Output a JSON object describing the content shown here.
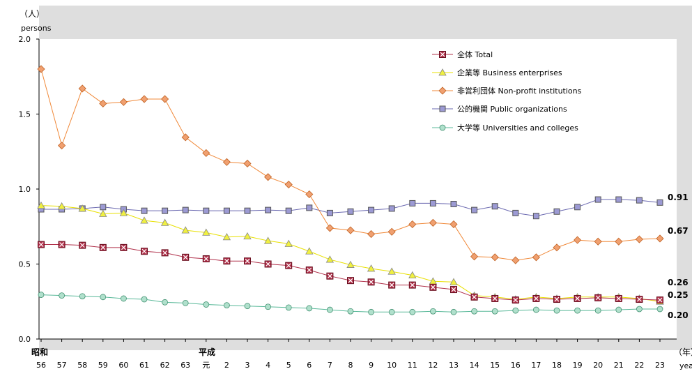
{
  "chart_data": {
    "type": "line",
    "ylabel_ja": "（人）",
    "ylabel_en": "persons",
    "xlabel_ja": "（年）",
    "xlabel_en": "year",
    "era_showa": "昭和",
    "era_heisei": "平成",
    "ylim": [
      0,
      2.0
    ],
    "yticks": [
      "0.0",
      "0.5",
      "1.0",
      "1.5",
      "2.0"
    ],
    "categories": [
      "56",
      "57",
      "58",
      "59",
      "60",
      "61",
      "62",
      "63",
      "元",
      "2",
      "3",
      "4",
      "5",
      "6",
      "7",
      "8",
      "9",
      "10",
      "11",
      "12",
      "13",
      "14",
      "15",
      "16",
      "17",
      "18",
      "19",
      "20",
      "21",
      "22",
      "23"
    ],
    "grid": false,
    "legend_position": "top-right",
    "series": [
      {
        "name": "全体 Total",
        "color": "#b0304a",
        "marker": "square-x",
        "values": [
          0.63,
          0.63,
          0.625,
          0.61,
          0.61,
          0.585,
          0.575,
          0.545,
          0.535,
          0.52,
          0.52,
          0.5,
          0.49,
          0.46,
          0.42,
          0.39,
          0.38,
          0.36,
          0.36,
          0.345,
          0.33,
          0.28,
          0.27,
          0.26,
          0.27,
          0.265,
          0.27,
          0.275,
          0.27,
          0.265,
          0.26
        ],
        "end_label": "0.26"
      },
      {
        "name": "企業等 Business enterprises",
        "color": "#e8e000",
        "marker": "triangle",
        "values": [
          0.89,
          0.885,
          0.87,
          0.835,
          0.84,
          0.79,
          0.775,
          0.725,
          0.71,
          0.68,
          0.685,
          0.655,
          0.635,
          0.585,
          0.53,
          0.495,
          0.47,
          0.45,
          0.425,
          0.385,
          0.38,
          0.29,
          0.28,
          0.265,
          0.28,
          0.27,
          0.28,
          0.28,
          0.28,
          0.27,
          0.25
        ],
        "end_label": "0.25"
      },
      {
        "name": "非営利団体 Non-profit institutions",
        "color": "#f08838",
        "marker": "diamond",
        "values": [
          1.8,
          1.29,
          1.67,
          1.57,
          1.58,
          1.6,
          1.6,
          1.345,
          1.24,
          1.18,
          1.17,
          1.08,
          1.03,
          0.965,
          0.74,
          0.725,
          0.7,
          0.715,
          0.765,
          0.775,
          0.765,
          0.55,
          0.545,
          0.525,
          0.545,
          0.61,
          0.66,
          0.65,
          0.65,
          0.665,
          0.67
        ],
        "end_label": "0.67"
      },
      {
        "name": "公的機関 Public organizations",
        "color": "#6a68b0",
        "marker": "square",
        "values": [
          0.865,
          0.865,
          0.87,
          0.88,
          0.865,
          0.855,
          0.855,
          0.86,
          0.855,
          0.855,
          0.855,
          0.86,
          0.855,
          0.875,
          0.84,
          0.85,
          0.86,
          0.87,
          0.905,
          0.905,
          0.9,
          0.86,
          0.885,
          0.84,
          0.82,
          0.85,
          0.88,
          0.93,
          0.93,
          0.925,
          0.91
        ],
        "end_label": "0.91"
      },
      {
        "name": "大学等 Universities and colleges",
        "color": "#58b898",
        "marker": "circle",
        "values": [
          0.295,
          0.29,
          0.285,
          0.28,
          0.27,
          0.265,
          0.245,
          0.24,
          0.23,
          0.225,
          0.22,
          0.215,
          0.21,
          0.205,
          0.195,
          0.185,
          0.18,
          0.18,
          0.18,
          0.185,
          0.18,
          0.185,
          0.185,
          0.19,
          0.195,
          0.19,
          0.19,
          0.19,
          0.195,
          0.2,
          0.2
        ],
        "end_label": "0.20"
      }
    ]
  }
}
